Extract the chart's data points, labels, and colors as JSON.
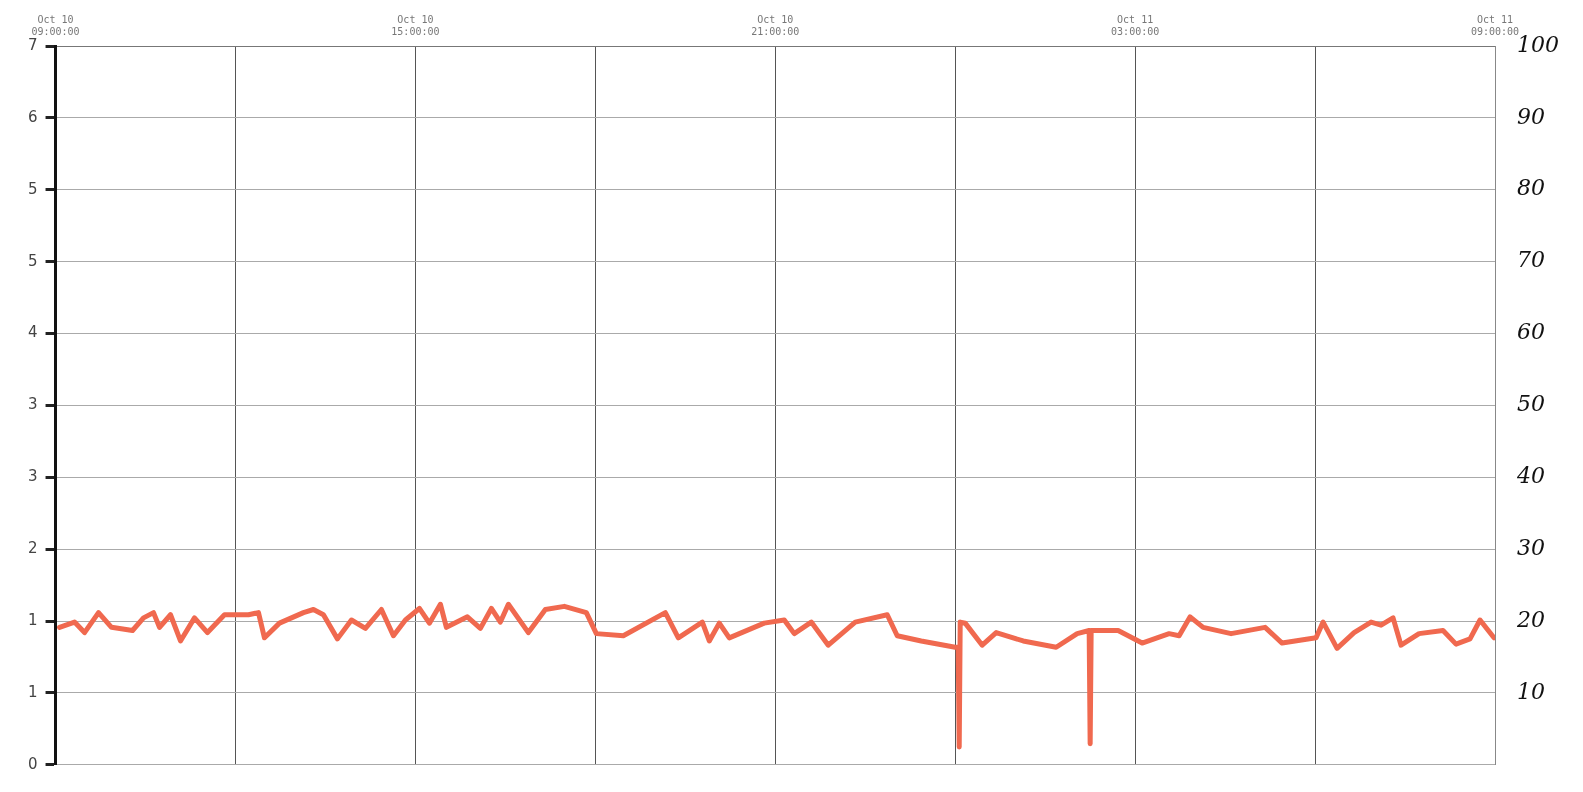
{
  "chart_data": {
    "type": "line",
    "x": [
      "--10-10T09:04",
      "--10-10T09:19",
      "--10-10T09:29",
      "--10-10T09:43",
      "--10-10T09:56",
      "--10-10T10:17",
      "--10-10T10:28",
      "--10-10T10:38",
      "--10-10T10:44",
      "--10-10T10:55",
      "--10-10T11:05",
      "--10-10T11:19",
      "--10-10T11:32",
      "--10-10T11:49",
      "--10-10T12:13",
      "--10-10T12:23",
      "--10-10T12:29",
      "--10-10T12:44",
      "--10-10T13:08",
      "--10-10T13:18",
      "--10-10T13:28",
      "--10-10T13:42",
      "--10-10T13:56",
      "--10-10T14:10",
      "--10-10T14:26",
      "--10-10T14:38",
      "--10-10T14:50",
      "--10-10T15:04",
      "--10-10T15:14",
      "--10-10T15:25",
      "--10-10T15:31",
      "--10-10T15:52",
      "--10-10T16:05",
      "--10-10T16:16",
      "--10-10T16:25",
      "--10-10T16:33",
      "--10-10T16:53",
      "--10-10T17:10",
      "--10-10T17:29",
      "--10-10T17:51",
      "--10-10T18:01",
      "--10-10T18:28",
      "--10-10T19:10",
      "--10-10T19:23",
      "--10-10T19:47",
      "--10-10T19:54",
      "--10-10T20:04",
      "--10-10T20:14",
      "--10-10T20:49",
      "--10-10T21:09",
      "--10-10T21:19",
      "--10-10T21:36",
      "--10-10T21:53",
      "--10-10T22:20",
      "--10-10T22:52",
      "--10-10T23:02",
      "--10-10T23:26",
      "--10-11T00:00",
      "--10-11T00:03",
      "--10-11T00:04",
      "--10-11T00:05",
      "--10-11T00:10",
      "--10-11T00:27",
      "--10-11T00:41",
      "--10-11T01:08",
      "--10-11T01:41",
      "--10-11T02:02",
      "--10-11T02:14",
      "--10-11T02:15",
      "--10-11T02:16",
      "--10-11T02:43",
      "--10-11T03:07",
      "--10-11T03:34",
      "--10-11T03:44",
      "--10-11T03:55",
      "--10-11T04:08",
      "--10-11T04:36",
      "--10-11T05:10",
      "--10-11T05:27",
      "--10-11T06:01",
      "--10-11T06:08",
      "--10-11T06:22",
      "--10-11T06:39",
      "--10-11T06:56",
      "--10-11T07:06",
      "--10-11T07:18",
      "--10-11T07:26",
      "--10-11T07:44",
      "--10-11T08:08",
      "--10-11T08:21",
      "--10-11T08:35",
      "--10-11T08:45",
      "--10-11T08:59"
    ],
    "series": [
      {
        "color": "#f0694f",
        "values": [
          1.31,
          1.36,
          1.26,
          1.45,
          1.31,
          1.28,
          1.4,
          1.45,
          1.31,
          1.43,
          1.18,
          1.4,
          1.26,
          1.43,
          1.43,
          1.45,
          1.21,
          1.35,
          1.45,
          1.48,
          1.43,
          1.2,
          1.38,
          1.3,
          1.48,
          1.23,
          1.38,
          1.49,
          1.35,
          1.53,
          1.31,
          1.41,
          1.3,
          1.49,
          1.36,
          1.53,
          1.26,
          1.48,
          1.51,
          1.45,
          1.25,
          1.23,
          1.45,
          1.21,
          1.36,
          1.18,
          1.35,
          1.21,
          1.35,
          1.38,
          1.25,
          1.36,
          1.14,
          1.36,
          1.43,
          1.23,
          1.18,
          1.12,
          1.12,
          0.17,
          1.36,
          1.35,
          1.14,
          1.26,
          1.18,
          1.12,
          1.25,
          1.28,
          0.2,
          1.28,
          1.28,
          1.16,
          1.25,
          1.23,
          1.41,
          1.31,
          1.25,
          1.31,
          1.16,
          1.21,
          1.36,
          1.11,
          1.26,
          1.36,
          1.33,
          1.4,
          1.14,
          1.25,
          1.28,
          1.15,
          1.2,
          1.38,
          1.21
        ]
      }
    ],
    "xlim": [
      "--10-10T09:00",
      "--10-11T09:00"
    ],
    "xticks": [
      {
        "value": "--10-10T09:00",
        "label": "Oct 10 09:00:00"
      },
      {
        "value": "--10-10T12:00",
        "label": null
      },
      {
        "value": "--10-10T15:00",
        "label": "Oct 10 15:00:00"
      },
      {
        "value": "--10-10T18:00",
        "label": null
      },
      {
        "value": "--10-10T21:00",
        "label": "Oct 10 21:00:00"
      },
      {
        "value": "--10-11T00:00",
        "label": null
      },
      {
        "value": "--10-11T03:00",
        "label": "Oct 11 03:00:00"
      },
      {
        "value": "--10-11T06:00",
        "label": null
      },
      {
        "value": "--10-11T09:00",
        "label": "Oct 11 09:00:00"
      }
    ],
    "ylim": [
      0,
      6.85
    ],
    "yticks": [
      {
        "value": 0,
        "label": "0"
      },
      {
        "value": 0.685,
        "label": "1"
      },
      {
        "value": 1.37,
        "label": "1"
      },
      {
        "value": 2.055,
        "label": "2"
      },
      {
        "value": 2.74,
        "label": "3"
      },
      {
        "value": 3.425,
        "label": "3"
      },
      {
        "value": 4.11,
        "label": "4"
      },
      {
        "value": 4.795,
        "label": "5"
      },
      {
        "value": 5.48,
        "label": "5"
      },
      {
        "value": 6.165,
        "label": "6"
      },
      {
        "value": 6.85,
        "label": "7"
      }
    ],
    "y2lim": [
      0,
      100
    ],
    "y2ticks": [
      10,
      20,
      30,
      40,
      50,
      60,
      70,
      80,
      90,
      100
    ],
    "grid": true
  }
}
